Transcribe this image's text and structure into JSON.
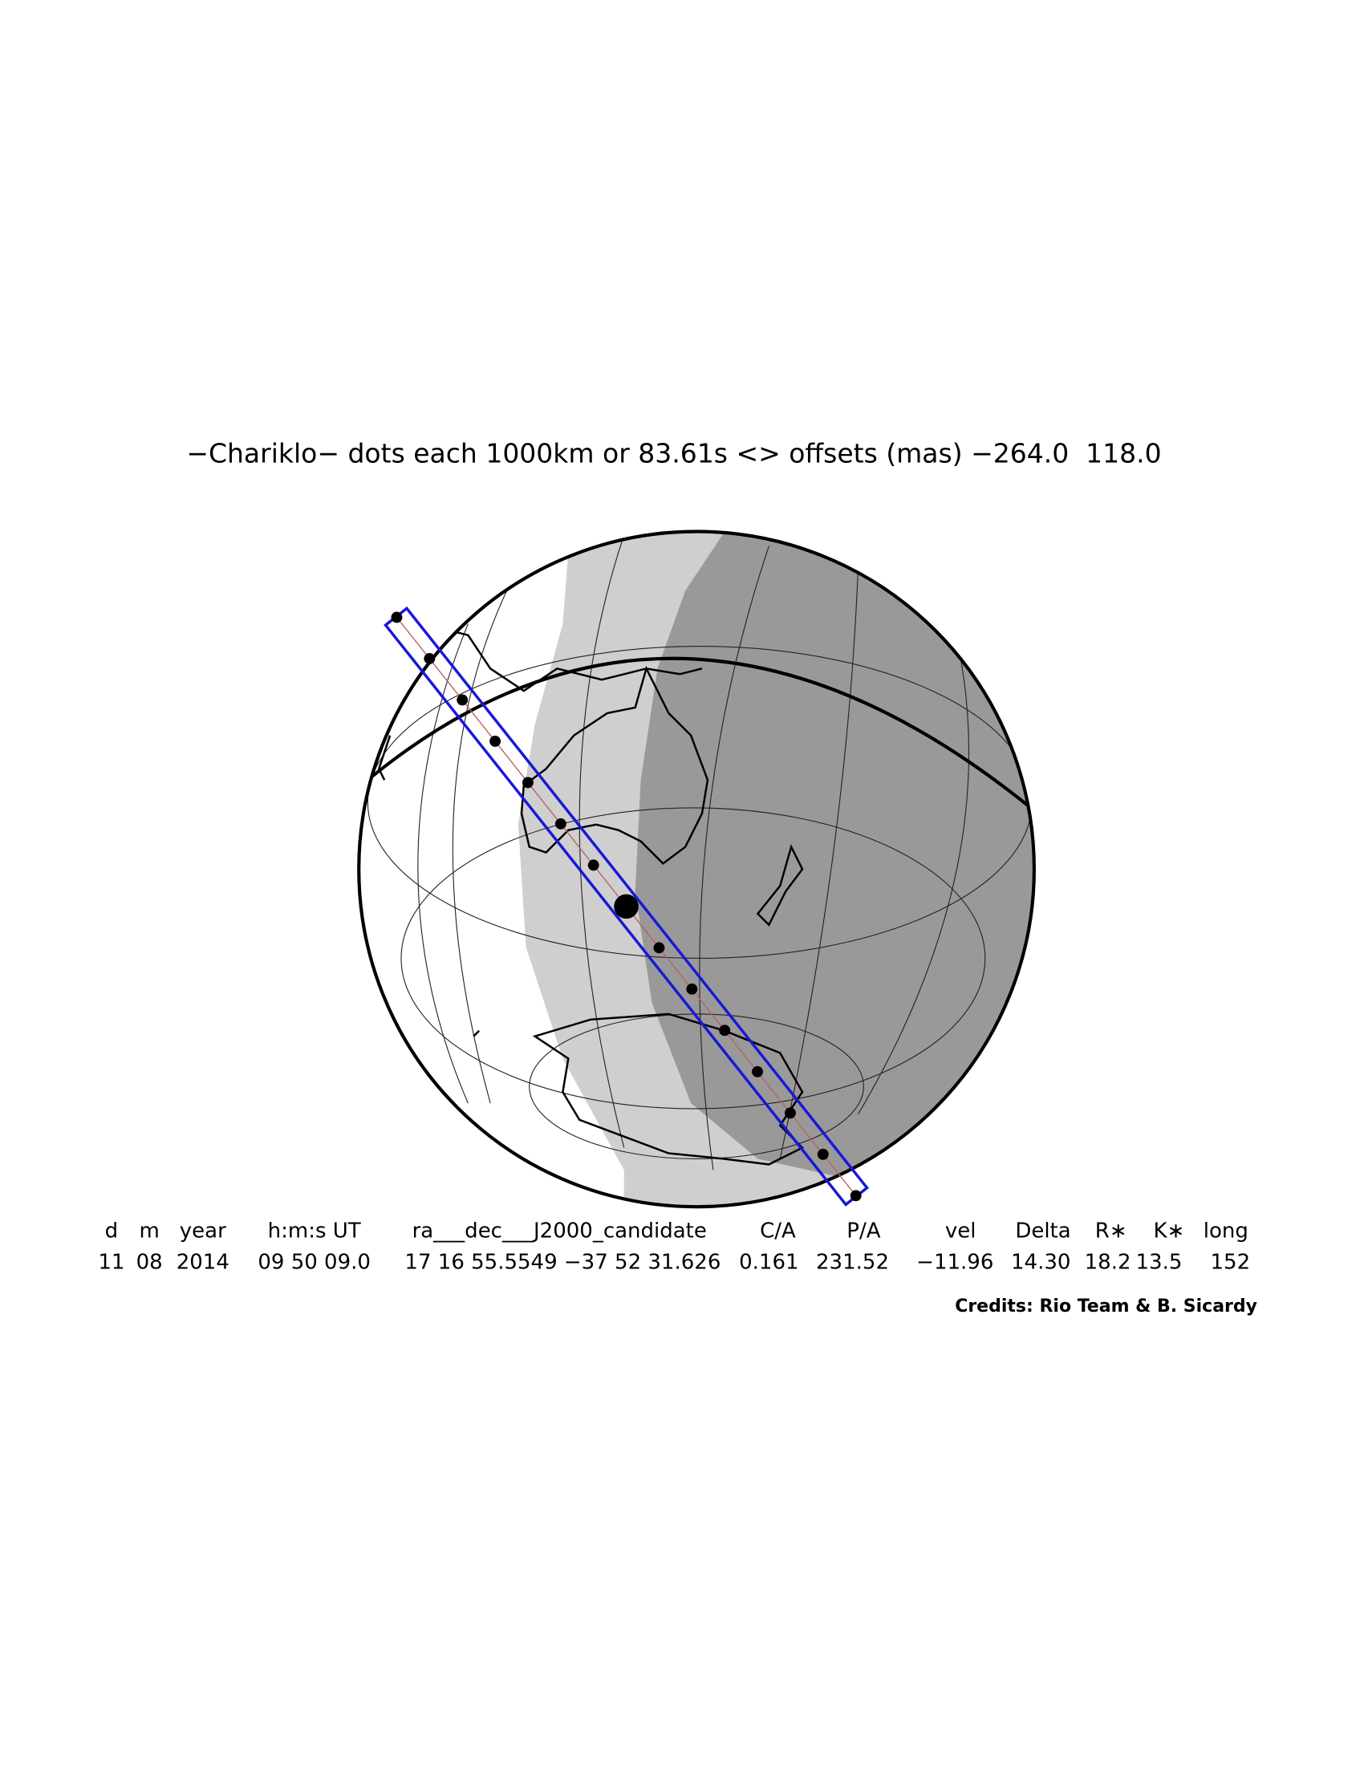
{
  "header": {
    "title": "−Chariklo− dots each 1000km or 83.61s <> offsets (mas) −264.0  118.0"
  },
  "table": {
    "columns": [
      "d",
      "m",
      "year",
      "h:m:s UT",
      "ra___dec___J2000_candidate",
      "C/A",
      "P/A",
      "vel",
      "Delta",
      "R∗",
      "K∗",
      "long"
    ],
    "rows": [
      [
        "11",
        "08",
        "2014",
        "09 50 09.0",
        "17 16 55.5549 −37 52 31.626",
        "0.161",
        "231.52",
        "−11.96",
        "14.30",
        "18.2",
        "13.5",
        "152"
      ]
    ]
  },
  "credits": "Credits: Rio Team & B. Sicardy"
}
